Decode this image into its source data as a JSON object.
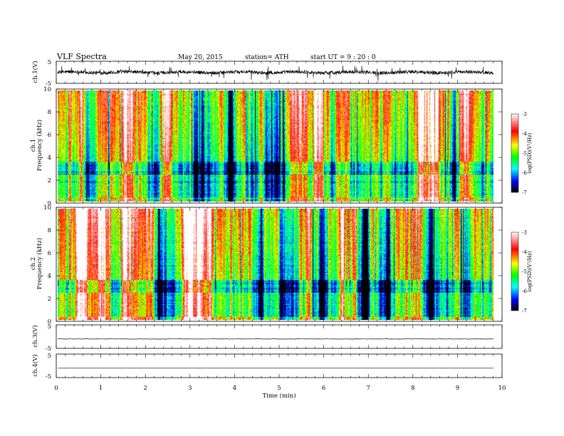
{
  "header": {
    "title": "VLF  Spectra",
    "date": "May 20, 2015",
    "station": "station= ATH",
    "start": "start  UT  =   9  : 20 : 0"
  },
  "chart_data": [
    {
      "type": "line",
      "id": "ch1-waveform",
      "ylabel": "ch.1(V)",
      "yticks": [
        "5",
        "-5"
      ],
      "ylim": [
        -5,
        5
      ],
      "xlim": [
        0,
        10
      ],
      "note_amplitude": "noisy trace roughly between -1.5 and 1.5 V around 0"
    },
    {
      "type": "heatmap",
      "id": "ch1-spectrogram",
      "ylabel": "Frequency  (kHz)",
      "ylabel_prefix": "ch.1",
      "yticks": [
        "0",
        "2",
        "4",
        "6",
        "8",
        "10"
      ],
      "ylim": [
        0,
        10
      ],
      "xlim": [
        0,
        9.8
      ],
      "colorbar": {
        "label": "log(PSD)(V²/Hz)",
        "ticks": [
          "-3",
          "-4",
          "-5",
          "-6",
          "-7"
        ],
        "range": [
          -7,
          -3
        ]
      }
    },
    {
      "type": "heatmap",
      "id": "ch2-spectrogram",
      "ylabel": "Frequency  (kHz)",
      "ylabel_prefix": "ch.2",
      "yticks": [
        "0",
        "2",
        "4",
        "6",
        "8",
        "10"
      ],
      "ylim": [
        0,
        10
      ],
      "xlim": [
        0,
        9.8
      ],
      "colorbar": {
        "label": "log(PSD)(V²/Hz)",
        "ticks": [
          "-3",
          "-4",
          "-5",
          "-6",
          "-7"
        ],
        "range": [
          -7,
          -3
        ]
      }
    },
    {
      "type": "line",
      "id": "ch3-waveform",
      "ylabel": "ch.3(V)",
      "yticks": [
        "5",
        "-5"
      ],
      "ylim": [
        -5,
        5
      ],
      "value": -1
    },
    {
      "type": "line",
      "id": "ch4-waveform",
      "ylabel": "ch.4(V)",
      "yticks": [
        "5",
        "-5"
      ],
      "ylim": [
        -5,
        5
      ],
      "value": -1
    }
  ],
  "xaxis": {
    "label": "Time  (min)",
    "ticks": [
      "0",
      "1",
      "2",
      "3",
      "4",
      "5",
      "6",
      "7",
      "8",
      "9",
      "10"
    ],
    "range": [
      0,
      10
    ]
  },
  "colors": {
    "scale": [
      "#000000",
      "#0000ff",
      "#00ffff",
      "#00ff00",
      "#ffff00",
      "#ff0000",
      "#ffffff"
    ]
  }
}
